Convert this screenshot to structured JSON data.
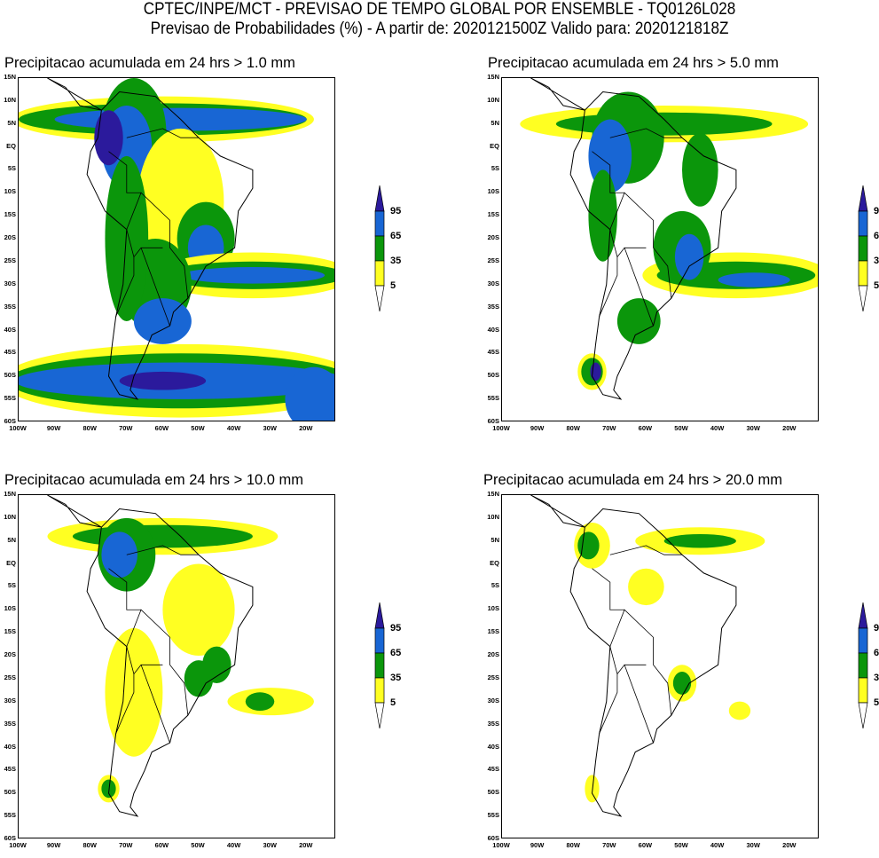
{
  "header": {
    "title": "CPTEC/INPE/MCT - PREVISAO DE TEMPO GLOBAL POR ENSEMBLE - TQ0126L028",
    "subtitle": "Previsao de Probabilidades (%) -  A partir de: 2020121500Z  Valido para: 2020121818Z"
  },
  "panels": [
    {
      "title": "Precipitacao acumulada em 24 hrs > 1.0 mm"
    },
    {
      "title": "Precipitacao acumulada em 24 hrs > 5.0 mm"
    },
    {
      "title": "Precipitacao acumulada em 24 hrs > 10.0 mm"
    },
    {
      "title": "Precipitacao acumulada em 24 hrs > 20.0 mm"
    }
  ],
  "lat_labels": [
    "15N",
    "10N",
    "5N",
    "EQ",
    "5S",
    "10S",
    "15S",
    "20S",
    "25S",
    "30S",
    "35S",
    "40S",
    "45S",
    "50S",
    "55S",
    "60S"
  ],
  "lon_labels": [
    "100W",
    "90W",
    "80W",
    "70W",
    "60W",
    "50W",
    "40W",
    "30W",
    "20W"
  ],
  "colorbar": {
    "labels": [
      "95",
      "65",
      "35",
      "5"
    ],
    "colors": {
      "c95": "#2b1a9c",
      "c65": "#1866d4",
      "c35": "#0b960b",
      "c5": "#ffff22"
    }
  }
}
